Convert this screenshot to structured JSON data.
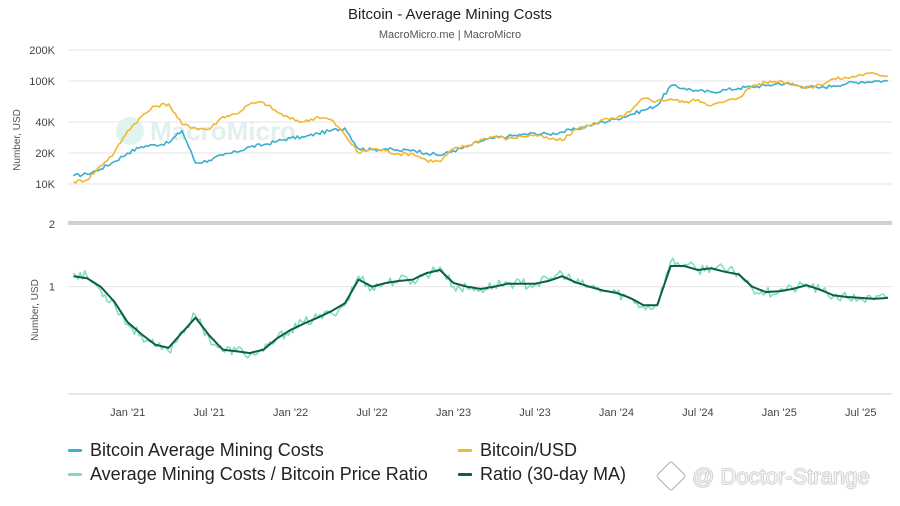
{
  "header": {
    "title": "Bitcoin - Average Mining Costs",
    "subtitle": "MacroMicro.me | MacroMicro"
  },
  "watermark": {
    "logo_text": "MacroMicro",
    "handle": "@ Doctor-Strange"
  },
  "colors": {
    "mining_cost": "#3AAFD0",
    "btc_usd": "#F2B731",
    "ratio": "#7DDCC0",
    "ratio_ma": "#0E5E45",
    "grid": "#E6E6E6",
    "divider": "#D0D0D0"
  },
  "legend": {
    "items": [
      {
        "label": "Bitcoin Average Mining Costs",
        "color": "#3AAFD0"
      },
      {
        "label": "Bitcoin/USD",
        "color": "#F2B731"
      },
      {
        "label": "Average Mining Costs / Bitcoin Price Ratio",
        "color": "#7DDCC0"
      },
      {
        "label": "Ratio (30-day MA)",
        "color": "#0E5E45"
      }
    ]
  },
  "chart_data": [
    {
      "type": "line",
      "panel": "top",
      "ylabel": "Number, USD",
      "yscale": "log",
      "ylim": [
        7000,
        200000
      ],
      "yticks": [
        {
          "value": 10000,
          "label": "10K"
        },
        {
          "value": 20000,
          "label": "20K"
        },
        {
          "value": 40000,
          "label": "40K"
        },
        {
          "value": 100000,
          "label": "100K"
        },
        {
          "value": 200000,
          "label": "200K"
        }
      ],
      "x": [
        "2020-09",
        "2020-10",
        "2020-11",
        "2020-12",
        "2021-01",
        "2021-02",
        "2021-03",
        "2021-04",
        "2021-05",
        "2021-06",
        "2021-07",
        "2021-08",
        "2021-09",
        "2021-10",
        "2021-11",
        "2021-12",
        "2022-01",
        "2022-02",
        "2022-03",
        "2022-04",
        "2022-05",
        "2022-06",
        "2022-07",
        "2022-08",
        "2022-09",
        "2022-10",
        "2022-11",
        "2022-12",
        "2023-01",
        "2023-02",
        "2023-03",
        "2023-04",
        "2023-05",
        "2023-06",
        "2023-07",
        "2023-08",
        "2023-09",
        "2023-10",
        "2023-11",
        "2023-12",
        "2024-01",
        "2024-02",
        "2024-03",
        "2024-04",
        "2024-05",
        "2024-06",
        "2024-07",
        "2024-08",
        "2024-09",
        "2024-10",
        "2024-11",
        "2024-12",
        "2025-01",
        "2025-02",
        "2025-03",
        "2025-04",
        "2025-05",
        "2025-06",
        "2025-07",
        "2025-08",
        "2025-09"
      ],
      "series": [
        {
          "name": "Bitcoin Average Mining Costs",
          "color": "#3AAFD0",
          "values": [
            12000,
            12500,
            14000,
            16500,
            20000,
            23000,
            24000,
            25000,
            33000,
            16000,
            17000,
            19000,
            20500,
            23000,
            24000,
            26000,
            28000,
            28500,
            31000,
            33000,
            35000,
            22000,
            21500,
            22000,
            21000,
            21500,
            20000,
            19000,
            21000,
            23000,
            26000,
            28000,
            29000,
            30000,
            31000,
            30500,
            32000,
            34000,
            37000,
            40000,
            43000,
            47000,
            52000,
            58000,
            90000,
            85000,
            80000,
            78000,
            82000,
            85000,
            88000,
            90000,
            95000,
            92000,
            88000,
            86000,
            90000,
            95000,
            98000,
            100000,
            100000
          ]
        },
        {
          "name": "Bitcoin/USD",
          "color": "#F2B731",
          "values": [
            10500,
            11000,
            15000,
            20000,
            33000,
            45000,
            57000,
            60000,
            38000,
            35000,
            34000,
            45000,
            48000,
            60000,
            62000,
            50000,
            43000,
            40000,
            45000,
            42000,
            30000,
            20000,
            22000,
            21000,
            19500,
            19800,
            17000,
            16500,
            22000,
            23500,
            27000,
            29000,
            27500,
            29000,
            30000,
            27500,
            26500,
            34000,
            37000,
            42000,
            43000,
            50000,
            68000,
            64000,
            67000,
            62000,
            66000,
            58000,
            63000,
            69000,
            90000,
            97000,
            100000,
            95000,
            85000,
            92000,
            105000,
            107000,
            115000,
            118000,
            112000
          ]
        }
      ]
    },
    {
      "type": "line",
      "panel": "bottom",
      "ylabel": "Number, USD",
      "yscale": "log",
      "ylim": [
        0.25,
        2
      ],
      "yticks": [
        {
          "value": 2,
          "label": "2"
        },
        {
          "value": 1,
          "label": "1"
        }
      ],
      "x": [
        "2020-09",
        "2020-10",
        "2020-11",
        "2020-12",
        "2021-01",
        "2021-02",
        "2021-03",
        "2021-04",
        "2021-05",
        "2021-06",
        "2021-07",
        "2021-08",
        "2021-09",
        "2021-10",
        "2021-11",
        "2021-12",
        "2022-01",
        "2022-02",
        "2022-03",
        "2022-04",
        "2022-05",
        "2022-06",
        "2022-07",
        "2022-08",
        "2022-09",
        "2022-10",
        "2022-11",
        "2022-12",
        "2023-01",
        "2023-02",
        "2023-03",
        "2023-04",
        "2023-05",
        "2023-06",
        "2023-07",
        "2023-08",
        "2023-09",
        "2023-10",
        "2023-11",
        "2023-12",
        "2024-01",
        "2024-02",
        "2024-03",
        "2024-04",
        "2024-05",
        "2024-06",
        "2024-07",
        "2024-08",
        "2024-09",
        "2024-10",
        "2024-11",
        "2024-12",
        "2025-01",
        "2025-02",
        "2025-03",
        "2025-04",
        "2025-05",
        "2025-06",
        "2025-07",
        "2025-08",
        "2025-09"
      ],
      "xticks": [
        "Jan '21",
        "Jul '21",
        "Jan '22",
        "Jul '22",
        "Jan '23",
        "Jul '23",
        "Jan '24",
        "Jul '24",
        "Jan '25",
        "Jul '25"
      ],
      "xtick_dates": [
        "2021-01",
        "2021-07",
        "2022-01",
        "2022-07",
        "2023-01",
        "2023-07",
        "2024-01",
        "2024-07",
        "2025-01",
        "2025-07"
      ],
      "series": [
        {
          "name": "Average Mining Costs / Bitcoin Price Ratio",
          "color": "#7DDCC0",
          "values": [
            1.2,
            1.15,
            0.95,
            0.8,
            0.6,
            0.52,
            0.45,
            0.42,
            0.55,
            0.68,
            0.5,
            0.42,
            0.43,
            0.4,
            0.42,
            0.5,
            0.56,
            0.62,
            0.66,
            0.7,
            0.78,
            1.15,
            0.98,
            1.05,
            1.1,
            1.08,
            1.18,
            1.3,
            1.0,
            0.98,
            0.96,
            1.02,
            1.05,
            1.04,
            1.03,
            1.1,
            1.2,
            1.05,
            1.0,
            0.95,
            0.92,
            0.85,
            0.76,
            0.78,
            1.4,
            1.35,
            1.25,
            1.3,
            1.25,
            1.2,
            0.98,
            0.92,
            0.95,
            0.97,
            1.03,
            0.95,
            0.88,
            0.86,
            0.85,
            0.84,
            0.87
          ]
        },
        {
          "name": "Ratio (30-day MA)",
          "color": "#0E5E45",
          "values": [
            1.15,
            1.12,
            1.0,
            0.82,
            0.62,
            0.53,
            0.46,
            0.44,
            0.54,
            0.66,
            0.52,
            0.43,
            0.42,
            0.41,
            0.43,
            0.5,
            0.56,
            0.61,
            0.66,
            0.72,
            0.8,
            1.1,
            1.0,
            1.05,
            1.08,
            1.1,
            1.2,
            1.25,
            1.05,
            1.0,
            0.97,
            1.0,
            1.04,
            1.04,
            1.04,
            1.08,
            1.15,
            1.06,
            1.0,
            0.95,
            0.92,
            0.86,
            0.78,
            0.78,
            1.32,
            1.32,
            1.25,
            1.28,
            1.22,
            1.18,
            1.0,
            0.93,
            0.94,
            0.97,
            1.02,
            0.96,
            0.89,
            0.87,
            0.86,
            0.85,
            0.86
          ]
        }
      ]
    }
  ]
}
